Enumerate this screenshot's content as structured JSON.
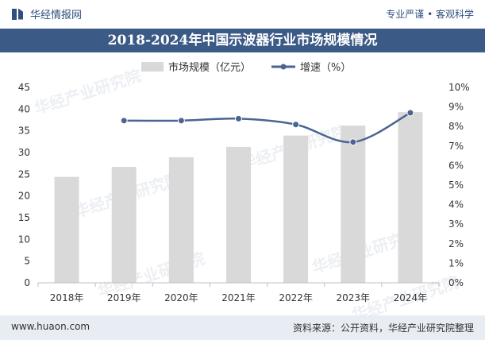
{
  "header": {
    "brand": "华经情报网",
    "slogan": "专业严谨 • 客观科学"
  },
  "title": "2018-2024年中国示波器行业市场规模情况",
  "footer": {
    "website": "www.huaon.com",
    "source": "资料来源：公开资料，华经产业研究院整理"
  },
  "watermark": "华经产业研究院",
  "colors": {
    "bar": "#d9d9d9",
    "line": "#4a6591",
    "title_bg": "#3b5a86"
  },
  "chart_data": {
    "type": "bar+line",
    "categories": [
      "2018年",
      "2019年",
      "2020年",
      "2021年",
      "2022年",
      "2023年",
      "2024年"
    ],
    "series": [
      {
        "name": "市场规模（亿元）",
        "type": "bar",
        "axis": "left",
        "values": [
          24.4,
          26.7,
          28.9,
          31.3,
          33.9,
          36.2,
          39.3
        ]
      },
      {
        "name": "增速（%）",
        "type": "line",
        "axis": "right",
        "values": [
          null,
          8.3,
          8.3,
          8.4,
          8.1,
          7.2,
          8.7
        ]
      }
    ],
    "y_left": {
      "min": 0,
      "max": 45,
      "ticks": [
        "0",
        "5",
        "10",
        "15",
        "20",
        "25",
        "30",
        "35",
        "40",
        "45"
      ]
    },
    "y_right": {
      "min": 0,
      "max": 10,
      "ticks": [
        "0%",
        "1%",
        "2%",
        "3%",
        "4%",
        "5%",
        "6%",
        "7%",
        "8%",
        "9%",
        "10%"
      ]
    },
    "legend": "top-center",
    "grid": false
  }
}
